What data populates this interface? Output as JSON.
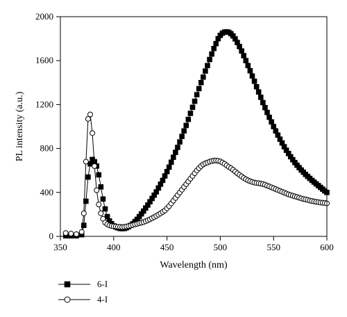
{
  "chart_data": {
    "type": "scatter",
    "title": "",
    "xlabel": "Wavelength (nm)",
    "ylabel": "PL intensity (a.u.)",
    "xlim": [
      350,
      600
    ],
    "ylim": [
      0,
      2000
    ],
    "xticks": [
      350,
      400,
      450,
      500,
      550,
      600
    ],
    "yticks": [
      0,
      400,
      800,
      1200,
      1600,
      2000
    ],
    "grid": false,
    "legend_position": "bottom-left, below plot",
    "series": [
      {
        "name": "6-I",
        "marker": "filled-square",
        "line": true,
        "x": [
          355,
          360,
          365,
          370,
          372,
          374,
          376,
          378,
          380,
          382,
          384,
          386,
          388,
          390,
          392,
          394,
          396,
          398,
          400,
          402,
          404,
          406,
          408,
          410,
          412,
          414,
          416,
          418,
          420,
          422,
          424,
          426,
          428,
          430,
          432,
          434,
          436,
          438,
          440,
          442,
          444,
          446,
          448,
          450,
          452,
          454,
          456,
          458,
          460,
          462,
          464,
          466,
          468,
          470,
          472,
          474,
          476,
          478,
          480,
          482,
          484,
          486,
          488,
          490,
          492,
          494,
          496,
          498,
          500,
          502,
          504,
          506,
          508,
          510,
          512,
          514,
          516,
          518,
          520,
          522,
          524,
          526,
          528,
          530,
          532,
          534,
          536,
          538,
          540,
          542,
          544,
          546,
          548,
          550,
          552,
          554,
          556,
          558,
          560,
          562,
          564,
          566,
          568,
          570,
          572,
          574,
          576,
          578,
          580,
          582,
          584,
          586,
          588,
          590,
          592,
          594,
          596,
          598,
          600
        ],
        "y": [
          5,
          5,
          5,
          15,
          100,
          320,
          540,
          660,
          700,
          680,
          640,
          560,
          450,
          340,
          250,
          180,
          140,
          115,
          95,
          85,
          78,
          72,
          70,
          72,
          78,
          88,
          100,
          115,
          135,
          155,
          180,
          205,
          230,
          258,
          285,
          315,
          345,
          375,
          405,
          440,
          475,
          510,
          550,
          590,
          630,
          675,
          720,
          765,
          810,
          860,
          910,
          960,
          1010,
          1065,
          1120,
          1175,
          1230,
          1290,
          1345,
          1400,
          1450,
          1505,
          1555,
          1610,
          1660,
          1710,
          1755,
          1800,
          1830,
          1850,
          1860,
          1862,
          1858,
          1845,
          1825,
          1798,
          1765,
          1728,
          1688,
          1645,
          1600,
          1555,
          1508,
          1460,
          1412,
          1362,
          1314,
          1266,
          1218,
          1172,
          1128,
          1084,
          1042,
          1000,
          960,
          922,
          885,
          850,
          816,
          784,
          754,
          725,
          698,
          672,
          648,
          626,
          604,
          584,
          564,
          546,
          528,
          510,
          494,
          478,
          462,
          446,
          430,
          414,
          400
        ]
      },
      {
        "name": "4-I",
        "marker": "open-circle",
        "line": true,
        "x": [
          355,
          360,
          365,
          370,
          372,
          374,
          376,
          378,
          380,
          382,
          384,
          386,
          388,
          390,
          392,
          394,
          396,
          398,
          400,
          402,
          404,
          406,
          408,
          410,
          412,
          414,
          416,
          418,
          420,
          422,
          424,
          426,
          428,
          430,
          432,
          434,
          436,
          438,
          440,
          442,
          444,
          446,
          448,
          450,
          452,
          454,
          456,
          458,
          460,
          462,
          464,
          466,
          468,
          470,
          472,
          474,
          476,
          478,
          480,
          482,
          484,
          486,
          488,
          490,
          492,
          494,
          496,
          498,
          500,
          502,
          504,
          506,
          508,
          510,
          512,
          514,
          516,
          518,
          520,
          522,
          524,
          526,
          528,
          530,
          532,
          534,
          536,
          538,
          540,
          542,
          544,
          546,
          548,
          550,
          552,
          554,
          556,
          558,
          560,
          562,
          564,
          566,
          568,
          570,
          572,
          574,
          576,
          578,
          580,
          582,
          584,
          586,
          588,
          590,
          592,
          594,
          596,
          598,
          600
        ],
        "y": [
          30,
          25,
          20,
          40,
          210,
          680,
          1070,
          1110,
          940,
          640,
          420,
          290,
          210,
          160,
          125,
          110,
          100,
          95,
          92,
          90,
          88,
          86,
          85,
          87,
          90,
          94,
          99,
          104,
          109,
          114,
          120,
          125,
          130,
          138,
          146,
          155,
          165,
          175,
          186,
          198,
          210,
          222,
          235,
          255,
          275,
          300,
          325,
          350,
          375,
          400,
          425,
          450,
          475,
          500,
          525,
          550,
          575,
          600,
          620,
          640,
          655,
          665,
          672,
          680,
          686,
          690,
          690,
          688,
          682,
          672,
          660,
          646,
          632,
          620,
          606,
          590,
          574,
          560,
          546,
          532,
          520,
          510,
          502,
          495,
          490,
          486,
          484,
          480,
          476,
          470,
          462,
          454,
          446,
          438,
          430,
          422,
          414,
          406,
          398,
          390,
          382,
          376,
          370,
          364,
          358,
          352,
          346,
          340,
          336,
          332,
          326,
          322,
          318,
          314,
          312,
          308,
          306,
          304,
          300
        ]
      }
    ]
  }
}
